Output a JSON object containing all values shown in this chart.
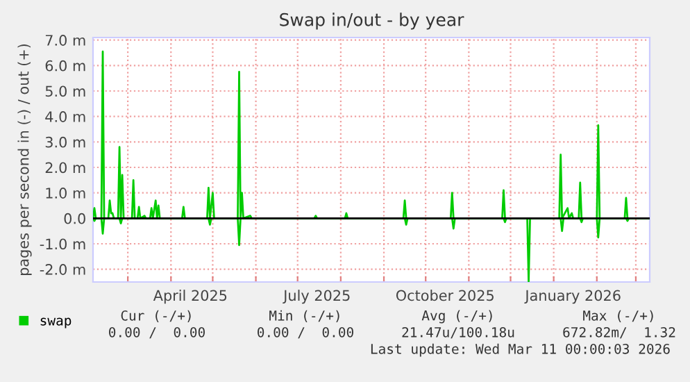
{
  "chart_data": {
    "type": "line",
    "title": "Swap in/out - by year",
    "ylabel": "pages per second in (-) / out (+)",
    "series": [
      {
        "name": "swap",
        "color": "#00cc00",
        "x": [
          "2025-02-04",
          "2025-02-05",
          "2025-02-06",
          "2025-02-10",
          "2025-02-11",
          "2025-02-12",
          "2025-02-15",
          "2025-02-16",
          "2025-02-17",
          "2025-02-18",
          "2025-02-19",
          "2025-02-22",
          "2025-02-23",
          "2025-02-24",
          "2025-02-25",
          "2025-02-26",
          "2025-03-04",
          "2025-03-05",
          "2025-03-06",
          "2025-03-08",
          "2025-03-09",
          "2025-03-10",
          "2025-03-13",
          "2025-03-14",
          "2025-03-17",
          "2025-03-18",
          "2025-03-19",
          "2025-03-21",
          "2025-03-22",
          "2025-03-23",
          "2025-03-24",
          "2025-04-09",
          "2025-04-10",
          "2025-04-11",
          "2025-04-27",
          "2025-04-28",
          "2025-04-29",
          "2025-05-01",
          "2025-05-02",
          "2025-05-19",
          "2025-05-20",
          "2025-05-21",
          "2025-05-22",
          "2025-05-23",
          "2025-05-28",
          "2025-05-29",
          "2025-07-13",
          "2025-07-14",
          "2025-07-15",
          "2025-08-04",
          "2025-08-05",
          "2025-08-06",
          "2025-09-15",
          "2025-09-16",
          "2025-09-17",
          "2025-10-19",
          "2025-10-20",
          "2025-10-21",
          "2025-11-25",
          "2025-11-26",
          "2025-11-27",
          "2026-01-05",
          "2026-01-06",
          "2026-01-07",
          "2026-01-11",
          "2026-01-12",
          "2026-01-14",
          "2026-01-15",
          "2026-01-19",
          "2026-01-20",
          "2026-01-21",
          "2026-02-01",
          "2026-02-02",
          "2026-02-03",
          "2026-02-21",
          "2026-02-22",
          "2026-02-23",
          "2026-03-11"
        ],
        "values": [
          0,
          0.4,
          0,
          0,
          6.55,
          0,
          0,
          0.7,
          0.2,
          0.2,
          0,
          0,
          2.8,
          0,
          1.7,
          0,
          0,
          1.5,
          0,
          0,
          0.45,
          0,
          0.1,
          0,
          0,
          0.4,
          0,
          0.7,
          0,
          0.5,
          0,
          0,
          0.45,
          0,
          0,
          1.2,
          0,
          1.0,
          0,
          0,
          5.75,
          0,
          1.0,
          0,
          0.1,
          0,
          0,
          0.1,
          0,
          0,
          0.2,
          0,
          0,
          0.7,
          0,
          0,
          1.0,
          0,
          0,
          1.1,
          0,
          0,
          2.5,
          0,
          0.4,
          0,
          0.2,
          0,
          0,
          1.4,
          0,
          0,
          3.65,
          0,
          0,
          0.8,
          0,
          0
        ]
      },
      {
        "color": "#00cc00",
        "x": [
          "2025-02-04",
          "2025-02-05",
          "2025-02-06",
          "2025-02-10",
          "2025-02-11",
          "2025-02-12",
          "2025-02-23",
          "2025-02-24",
          "2025-02-25",
          "2025-04-28",
          "2025-04-29",
          "2025-04-30",
          "2025-05-19",
          "2025-05-20",
          "2025-05-21",
          "2025-09-16",
          "2025-09-17",
          "2025-09-18",
          "2025-10-20",
          "2025-10-21",
          "2025-10-22",
          "2025-11-26",
          "2025-11-27",
          "2025-11-28",
          "2025-12-13",
          "2025-12-14",
          "2025-12-15",
          "2026-01-06",
          "2026-01-07",
          "2026-01-08",
          "2026-01-20",
          "2026-01-21",
          "2026-01-22",
          "2026-02-01",
          "2026-02-02",
          "2026-02-03",
          "2026-02-22",
          "2026-02-23",
          "2026-02-24",
          "2026-03-11"
        ],
        "values": [
          0,
          -0.1,
          0,
          0,
          -0.6,
          0,
          0,
          -0.2,
          0,
          0,
          -0.25,
          0,
          0,
          -1.05,
          0,
          0,
          -0.25,
          0,
          0,
          -0.4,
          0,
          0,
          -0.15,
          0,
          0,
          -2.48,
          0,
          0,
          -0.5,
          0,
          0,
          -0.15,
          0,
          0,
          -0.75,
          0,
          0,
          -0.1,
          0,
          0
        ]
      }
    ],
    "xlim": [
      "2025-02-04",
      "2026-03-11"
    ],
    "xticks": [
      {
        "value": "2025-03-01",
        "label": null
      },
      {
        "value": "2025-04-01",
        "label": null
      },
      {
        "value": "2025-04-15",
        "label": "April 2025"
      },
      {
        "value": "2025-05-01",
        "label": null
      },
      {
        "value": "2025-06-01",
        "label": null
      },
      {
        "value": "2025-07-01",
        "label": null
      },
      {
        "value": "2025-07-15",
        "label": "July 2025"
      },
      {
        "value": "2025-08-01",
        "label": null
      },
      {
        "value": "2025-09-01",
        "label": null
      },
      {
        "value": "2025-10-01",
        "label": null
      },
      {
        "value": "2025-10-15",
        "label": "October 2025"
      },
      {
        "value": "2025-11-01",
        "label": null
      },
      {
        "value": "2025-12-01",
        "label": null
      },
      {
        "value": "2026-01-01",
        "label": null
      },
      {
        "value": "2026-01-15",
        "label": "January 2026"
      },
      {
        "value": "2026-02-01",
        "label": null
      },
      {
        "value": "2026-03-01",
        "label": null
      }
    ],
    "ylim": [
      -2.5,
      7.1
    ],
    "yticks": [
      {
        "value": -2,
        "label": "-2.0 m"
      },
      {
        "value": -1,
        "label": "-1.0 m"
      },
      {
        "value": 0,
        "label": "0.0"
      },
      {
        "value": 1,
        "label": "1.0 m"
      },
      {
        "value": 2,
        "label": "2.0 m"
      },
      {
        "value": 3,
        "label": "3.0 m"
      },
      {
        "value": 4,
        "label": "4.0 m"
      },
      {
        "value": 5,
        "label": "5.0 m"
      },
      {
        "value": 6,
        "label": "6.0 m"
      },
      {
        "value": 7,
        "label": "7.0 m"
      }
    ],
    "ref_lines": [
      {
        "axis": "y",
        "value": 0,
        "color": "#000000"
      }
    ],
    "grid": true,
    "legend": "bottom left",
    "line_style": "solid",
    "marker": "none",
    "annotations": [
      "Cur (-/+)",
      "Min (-/+)",
      "Avg (-/+)",
      "Max (-/+)",
      "0.00 /  0.00",
      "0.00 /  0.00",
      "21.47u/100.18u",
      "672.82m/  1.32",
      "Last update: Wed Mar 11 00:00:03 2026"
    ]
  }
}
